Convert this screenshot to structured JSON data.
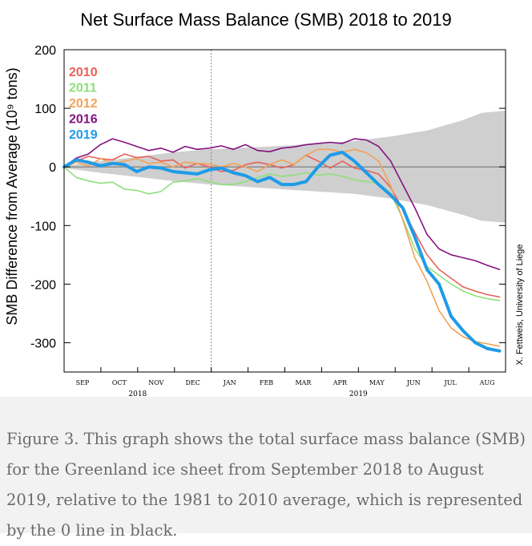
{
  "chart_data": {
    "type": "line",
    "title": "Net Surface Mass Balance (SMB) 2018 to 2019",
    "ylabel": "SMB Difference from Average (10⁹ tons)",
    "credit": "X. Fettweis, University of Liege",
    "ylim": [
      -350,
      200
    ],
    "yticks": [
      200,
      100,
      0,
      -100,
      -200,
      -300
    ],
    "xlim": [
      0,
      365
    ],
    "months": [
      "SEP",
      "OCT",
      "NOV",
      "DEC",
      "JAN",
      "FEB",
      "MAR",
      "APR",
      "MAY",
      "JUN",
      "JUL",
      "AUG"
    ],
    "years": [
      "2018",
      "2019"
    ],
    "legend_position": "top-left",
    "range_band": {
      "x": [
        0,
        30,
        60,
        90,
        120,
        150,
        180,
        210,
        240,
        270,
        300,
        330,
        345,
        365
      ],
      "upper": [
        2,
        10,
        17,
        25,
        30,
        33,
        36,
        40,
        44,
        52,
        62,
        80,
        92,
        96
      ],
      "lower": [
        -2,
        -10,
        -17,
        -24,
        -30,
        -34,
        -38,
        -42,
        -46,
        -54,
        -65,
        -82,
        -92,
        -95
      ]
    },
    "series": [
      {
        "name": "2010",
        "color": "#e8605a",
        "width": 1.6,
        "x": [
          0,
          10,
          20,
          30,
          40,
          50,
          60,
          70,
          80,
          90,
          100,
          110,
          120,
          130,
          140,
          150,
          160,
          170,
          180,
          190,
          200,
          210,
          220,
          230,
          240,
          250,
          260,
          270,
          280,
          290,
          300,
          310,
          320,
          330,
          340,
          350,
          360
        ],
        "y": [
          0,
          10,
          18,
          14,
          12,
          22,
          16,
          18,
          10,
          12,
          -2,
          6,
          0,
          -8,
          -6,
          4,
          8,
          4,
          -2,
          4,
          20,
          10,
          -2,
          10,
          -2,
          -6,
          -12,
          -35,
          -72,
          -112,
          -150,
          -175,
          -190,
          -205,
          -212,
          -218,
          -222
        ]
      },
      {
        "name": "2011",
        "color": "#8ee07a",
        "width": 1.6,
        "x": [
          0,
          10,
          20,
          30,
          40,
          50,
          60,
          70,
          80,
          90,
          100,
          110,
          120,
          130,
          140,
          150,
          160,
          170,
          180,
          190,
          200,
          210,
          220,
          230,
          240,
          250,
          260,
          270,
          280,
          290,
          300,
          310,
          320,
          330,
          340,
          350,
          360
        ],
        "y": [
          0,
          -18,
          -24,
          -28,
          -26,
          -38,
          -40,
          -46,
          -42,
          -26,
          -24,
          -20,
          -25,
          -30,
          -30,
          -25,
          -18,
          -12,
          -16,
          -14,
          -10,
          -14,
          -12,
          -16,
          -22,
          -25,
          -28,
          -45,
          -88,
          -140,
          -170,
          -185,
          -200,
          -212,
          -220,
          -225,
          -228
        ]
      },
      {
        "name": "2012",
        "color": "#f2a155",
        "width": 1.6,
        "x": [
          0,
          10,
          20,
          30,
          40,
          50,
          60,
          70,
          80,
          90,
          100,
          110,
          120,
          130,
          140,
          150,
          160,
          170,
          180,
          190,
          200,
          210,
          220,
          230,
          240,
          250,
          260,
          270,
          280,
          290,
          300,
          310,
          320,
          330,
          340,
          350,
          360
        ],
        "y": [
          0,
          8,
          2,
          14,
          6,
          10,
          14,
          6,
          8,
          0,
          8,
          6,
          5,
          0,
          6,
          0,
          -8,
          4,
          12,
          4,
          20,
          30,
          30,
          25,
          30,
          24,
          10,
          -32,
          -90,
          -155,
          -195,
          -245,
          -275,
          -290,
          -298,
          -302,
          -306
        ]
      },
      {
        "name": "2016",
        "color": "#84137e",
        "width": 1.6,
        "x": [
          0,
          10,
          20,
          30,
          40,
          50,
          60,
          70,
          80,
          90,
          100,
          110,
          120,
          130,
          140,
          150,
          160,
          170,
          180,
          190,
          200,
          210,
          220,
          230,
          240,
          250,
          260,
          270,
          280,
          290,
          300,
          310,
          320,
          330,
          340,
          350,
          360
        ],
        "y": [
          0,
          15,
          22,
          38,
          48,
          42,
          35,
          28,
          32,
          25,
          35,
          30,
          32,
          36,
          30,
          38,
          28,
          26,
          32,
          34,
          38,
          40,
          42,
          40,
          48,
          46,
          35,
          10,
          -30,
          -70,
          -115,
          -140,
          -150,
          -155,
          -160,
          -168,
          -175
        ]
      },
      {
        "name": "2019",
        "color": "#1f9be8",
        "width": 4,
        "x": [
          0,
          10,
          20,
          30,
          40,
          50,
          60,
          70,
          80,
          90,
          100,
          110,
          120,
          130,
          140,
          150,
          160,
          170,
          180,
          190,
          200,
          210,
          220,
          230,
          240,
          250,
          260,
          270,
          280,
          290,
          300,
          310,
          320,
          330,
          340,
          350,
          360
        ],
        "y": [
          0,
          12,
          8,
          2,
          6,
          4,
          -8,
          0,
          -2,
          -8,
          -10,
          -12,
          -5,
          -2,
          -10,
          -15,
          -25,
          -18,
          -30,
          -30,
          -25,
          0,
          20,
          25,
          10,
          -10,
          -30,
          -48,
          -70,
          -120,
          -175,
          -200,
          -255,
          -280,
          -300,
          -310,
          -314
        ]
      }
    ]
  },
  "caption": "Figure 3. This graph shows the total surface mass balance (SMB) for the Greenland ice sheet from September 2018 to August 2019, relative to the 1981 to 2010 average, which is represented by the 0 line in black."
}
